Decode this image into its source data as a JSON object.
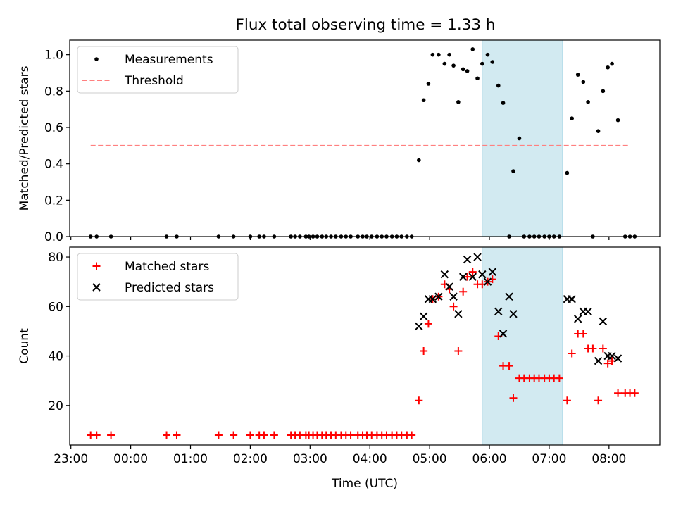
{
  "title": "Flux total observing time = 1.33 h",
  "chart_data": [
    {
      "type": "scatter",
      "panel": "top",
      "ylabel": "Matched/Predicted stars",
      "xlabel": "",
      "ylim": [
        0,
        1.08
      ],
      "yticks": [
        0.0,
        0.2,
        0.4,
        0.6,
        0.8,
        1.0
      ],
      "ytick_labels": [
        "0.0",
        "0.2",
        "0.4",
        "0.6",
        "0.8",
        "1.0"
      ],
      "legend": {
        "placement": "upper-left",
        "entries": [
          "Measurements",
          "Threshold"
        ]
      },
      "series": [
        {
          "name": "Measurements",
          "marker": "dot",
          "color": "#000000",
          "x": [
            23.33,
            23.43,
            23.67,
            24.6,
            24.77,
            25.47,
            25.72,
            26.0,
            26.15,
            26.23,
            26.4,
            26.68,
            26.75,
            26.83,
            26.93,
            26.98,
            27.05,
            27.12,
            27.2,
            27.27,
            27.35,
            27.43,
            27.52,
            27.6,
            27.68,
            27.8,
            27.88,
            27.95,
            28.03,
            28.12,
            28.2,
            28.28,
            28.37,
            28.45,
            28.53,
            28.62,
            28.7,
            28.82,
            28.9,
            28.98,
            29.05,
            29.15,
            29.25,
            29.33,
            29.4,
            29.48,
            29.56,
            29.63,
            29.72,
            29.8,
            29.88,
            29.97,
            30.05,
            30.15,
            30.23,
            30.33,
            30.4,
            30.5,
            30.58,
            30.67,
            30.75,
            30.83,
            30.92,
            31.0,
            31.08,
            31.17,
            31.3,
            31.38,
            31.48,
            31.57,
            31.65,
            31.73,
            31.82,
            31.9,
            31.98,
            32.05,
            32.15,
            32.27,
            32.35,
            32.43
          ],
          "y": [
            0,
            0,
            0,
            0,
            0,
            0,
            0,
            0,
            0,
            0,
            0,
            0,
            0,
            0,
            0,
            0,
            0,
            0,
            0,
            0,
            0,
            0,
            0,
            0,
            0,
            0,
            0,
            0,
            0,
            0,
            0,
            0,
            0,
            0,
            0,
            0,
            0,
            0.42,
            0.75,
            0.84,
            1.0,
            1.0,
            0.95,
            1.0,
            0.94,
            0.74,
            0.92,
            0.91,
            1.03,
            0.87,
            0.95,
            1.0,
            0.96,
            0.83,
            0.735,
            0,
            0.36,
            0.54,
            0,
            0,
            0,
            0,
            0,
            0,
            0,
            0,
            0.35,
            0.65,
            0.89,
            0.85,
            0.74,
            0,
            0.58,
            0.8,
            0.93,
            0.95,
            0.64,
            0,
            0,
            0
          ]
        },
        {
          "name": "Threshold",
          "style": "dashed",
          "color": "#ff8080",
          "x": [
            23.33,
            32.35
          ],
          "y": [
            0.5,
            0.5
          ]
        }
      ],
      "shaded_x_range": [
        29.88,
        31.22
      ],
      "shade_color": "#add8e6"
    },
    {
      "type": "scatter",
      "panel": "bottom",
      "ylabel": "Count",
      "xlabel": "Time (UTC)",
      "ylim": [
        4,
        84
      ],
      "yticks": [
        20,
        40,
        60,
        80
      ],
      "ytick_labels": [
        "20",
        "40",
        "60",
        "80"
      ],
      "xlim": [
        22.98,
        32.85
      ],
      "xticks": [
        23,
        24,
        25,
        26,
        27,
        28,
        29,
        30,
        31,
        32
      ],
      "xtick_labels": [
        "23:00",
        "00:00",
        "01:00",
        "02:00",
        "03:00",
        "04:00",
        "05:00",
        "06:00",
        "07:00",
        "08:00"
      ],
      "legend": {
        "placement": "upper-left",
        "entries": [
          "Matched stars",
          "Predicted stars"
        ]
      },
      "series": [
        {
          "name": "Matched stars",
          "marker": "plus",
          "color": "#ff0000",
          "x": [
            23.33,
            23.43,
            23.67,
            24.6,
            24.77,
            25.47,
            25.72,
            26.0,
            26.15,
            26.23,
            26.4,
            26.68,
            26.75,
            26.83,
            26.93,
            26.98,
            27.05,
            27.12,
            27.2,
            27.27,
            27.35,
            27.43,
            27.52,
            27.6,
            27.68,
            27.8,
            27.88,
            27.95,
            28.03,
            28.12,
            28.2,
            28.28,
            28.37,
            28.45,
            28.53,
            28.62,
            28.7,
            28.82,
            28.9,
            28.98,
            29.05,
            29.15,
            29.25,
            29.33,
            29.4,
            29.48,
            29.56,
            29.63,
            29.72,
            29.8,
            29.88,
            29.97,
            30.05,
            30.15,
            30.23,
            30.33,
            30.4,
            30.5,
            30.58,
            30.67,
            30.75,
            30.83,
            30.92,
            31.0,
            31.08,
            31.17,
            31.3,
            31.38,
            31.48,
            31.57,
            31.65,
            31.73,
            31.82,
            31.9,
            31.98,
            32.05,
            32.15,
            32.27,
            32.35,
            32.43
          ],
          "y": [
            8,
            8,
            8,
            8,
            8,
            8,
            8,
            8,
            8,
            8,
            8,
            8,
            8,
            8,
            8,
            8,
            8,
            8,
            8,
            8,
            8,
            8,
            8,
            8,
            8,
            8,
            8,
            8,
            8,
            8,
            8,
            8,
            8,
            8,
            8,
            8,
            8,
            22,
            42,
            53,
            63,
            64,
            69,
            67,
            60,
            42,
            66,
            72,
            74,
            69,
            69,
            70,
            71,
            48,
            36,
            36,
            23,
            31,
            31,
            31,
            31,
            31,
            31,
            31,
            31,
            31,
            22,
            41,
            49,
            49,
            43,
            43,
            22,
            43,
            37,
            38,
            25,
            25,
            25,
            25
          ]
        },
        {
          "name": "Predicted stars",
          "marker": "x",
          "color": "#000000",
          "x": [
            28.82,
            28.9,
            28.98,
            29.05,
            29.15,
            29.25,
            29.33,
            29.4,
            29.48,
            29.56,
            29.63,
            29.72,
            29.8,
            29.88,
            29.97,
            30.05,
            30.15,
            30.23,
            30.33,
            30.4,
            31.3,
            31.38,
            31.48,
            31.57,
            31.65,
            31.82,
            31.9,
            31.98,
            32.05,
            32.15
          ],
          "y": [
            52,
            56,
            63,
            63,
            64,
            73,
            68,
            64,
            57,
            72,
            79,
            72,
            80,
            73,
            70,
            74,
            58,
            49,
            64,
            57,
            63,
            63,
            55,
            58,
            58,
            38,
            54,
            40,
            40,
            39
          ]
        }
      ],
      "shaded_x_range": [
        29.88,
        31.22
      ],
      "shade_color": "#add8e6"
    }
  ]
}
